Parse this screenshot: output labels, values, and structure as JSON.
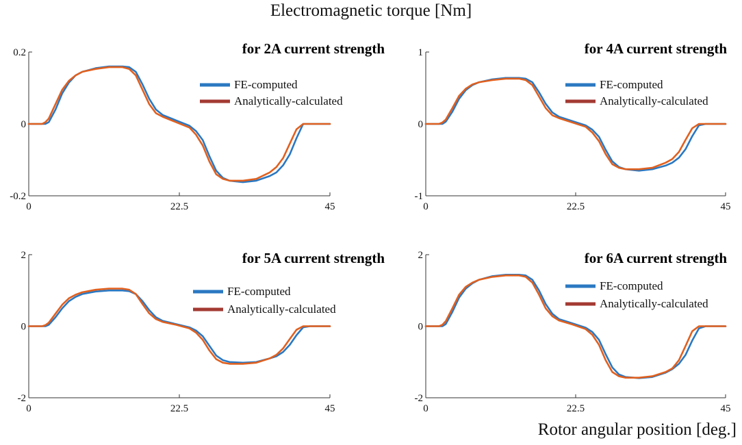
{
  "title": "Electromagnetic torque [Nm]",
  "xlabel": "Rotor angular position [deg.]",
  "colors": {
    "fe": "#2a78c2",
    "analytic": "#e0601f",
    "legend_analytic": "#a33a33",
    "axis": "#333333"
  },
  "chart_data": [
    {
      "type": "line",
      "title": "for 2A current strength",
      "xlim": [
        0,
        45
      ],
      "ylim": [
        -0.2,
        0.2
      ],
      "xticks": [
        "0",
        "22.5",
        "45"
      ],
      "yticks": [
        "0.2",
        "0",
        "-0.2"
      ],
      "legend": [
        "FE-computed",
        "Analytically-calculated"
      ],
      "x": [
        0,
        2,
        2.5,
        3,
        4,
        5,
        6,
        7,
        8,
        10,
        12,
        14,
        15,
        16,
        17,
        18,
        19,
        20,
        22,
        24,
        25,
        26,
        27,
        28,
        29,
        30,
        32,
        34,
        36,
        37,
        38,
        39,
        40,
        41,
        42,
        43,
        44,
        45
      ],
      "series": [
        {
          "name": "FE-computed",
          "values": [
            0,
            0,
            0,
            0.005,
            0.04,
            0.085,
            0.115,
            0.135,
            0.145,
            0.155,
            0.16,
            0.16,
            0.158,
            0.145,
            0.11,
            0.07,
            0.04,
            0.025,
            0.01,
            -0.005,
            -0.02,
            -0.045,
            -0.09,
            -0.13,
            -0.15,
            -0.158,
            -0.162,
            -0.158,
            -0.145,
            -0.135,
            -0.115,
            -0.085,
            -0.04,
            0,
            0,
            0,
            0,
            0
          ]
        },
        {
          "name": "Analytically-calculated",
          "values": [
            0,
            0,
            0.005,
            0.015,
            0.055,
            0.095,
            0.12,
            0.135,
            0.145,
            0.153,
            0.158,
            0.158,
            0.153,
            0.135,
            0.095,
            0.055,
            0.03,
            0.02,
            0.005,
            -0.01,
            -0.03,
            -0.06,
            -0.105,
            -0.14,
            -0.153,
            -0.158,
            -0.158,
            -0.153,
            -0.135,
            -0.12,
            -0.095,
            -0.055,
            -0.015,
            0,
            0,
            0,
            0,
            0
          ]
        }
      ]
    },
    {
      "type": "line",
      "title": "for 4A current strength",
      "xlim": [
        0,
        45
      ],
      "ylim": [
        -1,
        1
      ],
      "xticks": [
        "0",
        "22.5",
        "45"
      ],
      "yticks": [
        "1",
        "0",
        "-1"
      ],
      "legend": [
        "FE-computed",
        "Analytically-calculated"
      ],
      "x": [
        0,
        2,
        2.5,
        3,
        4,
        5,
        6,
        7,
        8,
        10,
        12,
        14,
        15,
        16,
        17,
        18,
        19,
        20,
        22,
        24,
        25,
        26,
        27,
        28,
        29,
        30,
        32,
        34,
        36,
        37,
        38,
        39,
        40,
        41,
        42,
        43,
        44,
        45
      ],
      "series": [
        {
          "name": "FE-computed",
          "values": [
            0,
            0,
            0,
            0.03,
            0.17,
            0.35,
            0.47,
            0.54,
            0.58,
            0.62,
            0.64,
            0.64,
            0.63,
            0.58,
            0.44,
            0.28,
            0.16,
            0.1,
            0.04,
            -0.02,
            -0.08,
            -0.18,
            -0.36,
            -0.52,
            -0.6,
            -0.63,
            -0.65,
            -0.63,
            -0.58,
            -0.54,
            -0.47,
            -0.35,
            -0.17,
            -0.02,
            0,
            0,
            0,
            0
          ]
        },
        {
          "name": "Analytically-calculated",
          "values": [
            0,
            0,
            0.02,
            0.06,
            0.22,
            0.39,
            0.49,
            0.55,
            0.58,
            0.61,
            0.63,
            0.63,
            0.61,
            0.54,
            0.38,
            0.22,
            0.12,
            0.08,
            0.02,
            -0.04,
            -0.12,
            -0.24,
            -0.42,
            -0.56,
            -0.61,
            -0.63,
            -0.63,
            -0.61,
            -0.54,
            -0.49,
            -0.39,
            -0.22,
            -0.06,
            0,
            0,
            0,
            0,
            0
          ]
        }
      ]
    },
    {
      "type": "line",
      "title": "for 5A current strength",
      "xlim": [
        0,
        45
      ],
      "ylim": [
        -2,
        2
      ],
      "xticks": [
        "0",
        "22.5",
        "45"
      ],
      "yticks": [
        "2",
        "0",
        "-2"
      ],
      "legend": [
        "FE-computed",
        "Analytically-calculated"
      ],
      "x": [
        0,
        2,
        2.5,
        3,
        4,
        5,
        6,
        7,
        8,
        10,
        12,
        14,
        15,
        16,
        17,
        18,
        19,
        20,
        22,
        24,
        25,
        26,
        27,
        28,
        29,
        30,
        32,
        34,
        36,
        37,
        38,
        39,
        40,
        41,
        42,
        43,
        44,
        45
      ],
      "series": [
        {
          "name": "FE-computed",
          "values": [
            0,
            0,
            0,
            0.04,
            0.25,
            0.5,
            0.7,
            0.82,
            0.9,
            0.97,
            1.0,
            1.0,
            0.98,
            0.9,
            0.7,
            0.45,
            0.25,
            0.15,
            0.06,
            -0.03,
            -0.12,
            -0.28,
            -0.55,
            -0.82,
            -0.95,
            -1.0,
            -1.02,
            -1.0,
            -0.9,
            -0.84,
            -0.72,
            -0.52,
            -0.25,
            -0.03,
            0,
            0,
            0,
            0
          ]
        },
        {
          "name": "Analytically-calculated",
          "values": [
            0,
            0,
            0.03,
            0.1,
            0.35,
            0.6,
            0.78,
            0.88,
            0.95,
            1.02,
            1.05,
            1.05,
            1.02,
            0.9,
            0.62,
            0.36,
            0.2,
            0.12,
            0.04,
            -0.06,
            -0.18,
            -0.38,
            -0.68,
            -0.92,
            -1.02,
            -1.05,
            -1.05,
            -1.02,
            -0.9,
            -0.8,
            -0.62,
            -0.36,
            -0.1,
            0,
            0,
            0,
            0,
            0
          ]
        }
      ]
    },
    {
      "type": "line",
      "title": "for 6A current strength",
      "xlim": [
        0,
        45
      ],
      "ylim": [
        -2,
        2
      ],
      "xticks": [
        "0",
        "22.5",
        "45"
      ],
      "yticks": [
        "2",
        "0",
        "-2"
      ],
      "legend": [
        "FE-computed",
        "Analytically-calculated"
      ],
      "x": [
        0,
        2,
        2.5,
        3,
        4,
        5,
        6,
        7,
        8,
        10,
        12,
        14,
        15,
        16,
        17,
        18,
        19,
        20,
        22,
        24,
        25,
        26,
        27,
        28,
        29,
        30,
        32,
        34,
        36,
        37,
        38,
        39,
        40,
        41,
        42,
        43,
        44,
        45
      ],
      "series": [
        {
          "name": "FE-computed",
          "values": [
            0,
            0,
            0,
            0.06,
            0.4,
            0.8,
            1.05,
            1.2,
            1.3,
            1.4,
            1.44,
            1.44,
            1.42,
            1.3,
            1.0,
            0.62,
            0.35,
            0.2,
            0.08,
            -0.04,
            -0.16,
            -0.38,
            -0.78,
            -1.15,
            -1.35,
            -1.42,
            -1.45,
            -1.42,
            -1.3,
            -1.2,
            -1.05,
            -0.8,
            -0.4,
            -0.06,
            0,
            0,
            0,
            0
          ]
        },
        {
          "name": "Analytically-calculated",
          "values": [
            0,
            0,
            0.04,
            0.14,
            0.5,
            0.88,
            1.1,
            1.22,
            1.3,
            1.38,
            1.42,
            1.42,
            1.38,
            1.22,
            0.88,
            0.5,
            0.28,
            0.16,
            0.05,
            -0.08,
            -0.24,
            -0.52,
            -0.95,
            -1.28,
            -1.4,
            -1.44,
            -1.44,
            -1.4,
            -1.28,
            -1.18,
            -0.95,
            -0.55,
            -0.14,
            0,
            0,
            0,
            0,
            0
          ]
        }
      ]
    }
  ]
}
